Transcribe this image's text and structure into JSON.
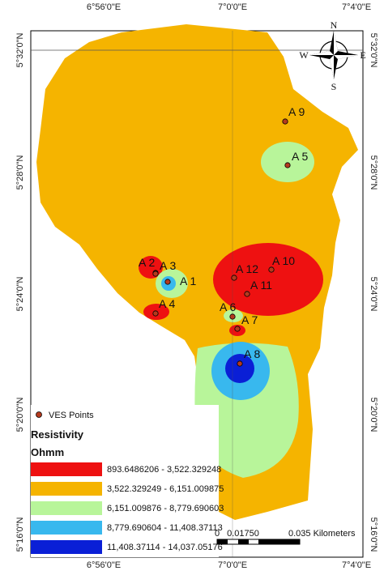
{
  "map": {
    "grid_labels": {
      "longitude": [
        "6°56'0\"E",
        "7°0'0\"E",
        "7°4'0\"E"
      ],
      "latitude": [
        "5°32'0\"N",
        "5°28'0\"N",
        "5°24'0\"N",
        "5°20'0\"N",
        "5°16'0\"N"
      ]
    },
    "compass": {
      "north": "N",
      "south": "S",
      "east": "E",
      "west": "W"
    },
    "points": [
      "A 1",
      "A 2",
      "A 3",
      "A 4",
      "A 5",
      "A 6",
      "A 7",
      "A 8",
      "A 9",
      "A 10",
      "A 11",
      "A 12"
    ],
    "legend": {
      "points_label": "VES Points",
      "title": "Resistivity",
      "unit": "Ohmm",
      "classes": [
        "893.6486206 - 3,522.329248",
        "3,522.329249 - 6,151.009875",
        "6,151.009876 - 8,779.690603",
        "8,779.690604 - 11,408.37113",
        "11,408.37114 - 14,037.05176"
      ]
    },
    "scale_bar": {
      "start": "0",
      "middle": "0.01750",
      "end": "0.035 Kilometers"
    }
  }
}
